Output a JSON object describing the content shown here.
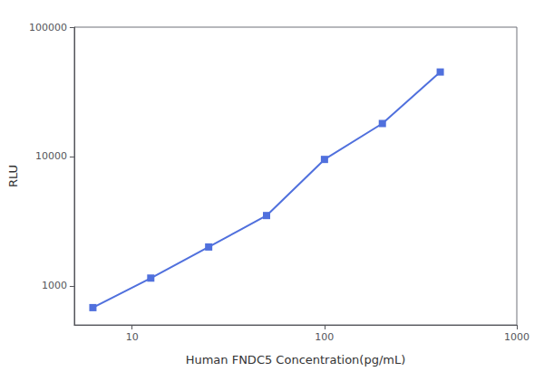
{
  "chart_data": {
    "type": "line",
    "xlabel": "Human FNDC5 Concentration(pg/mL)",
    "ylabel": "RLU",
    "x": [
      6.25,
      12.5,
      25,
      50,
      100,
      200,
      400
    ],
    "values": [
      680,
      1150,
      2000,
      3500,
      9500,
      18000,
      45000
    ],
    "xlim": [
      5,
      1000
    ],
    "ylim": [
      500,
      100000
    ],
    "xticks": [
      10,
      100,
      1000
    ],
    "yticks": [
      1000,
      10000,
      100000
    ],
    "log": true,
    "grid": false,
    "marker": "square"
  }
}
